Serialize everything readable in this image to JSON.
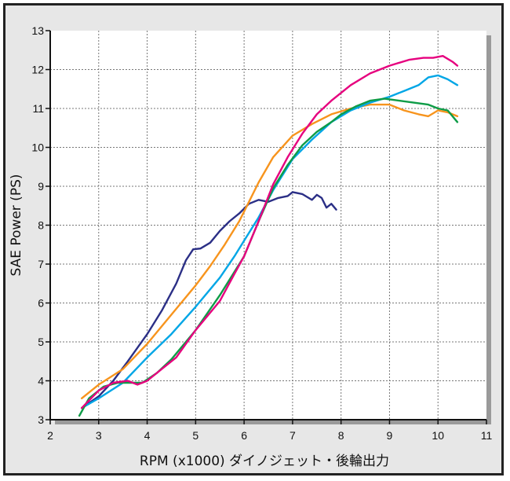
{
  "chart_data": {
    "type": "line",
    "xlabel": "RPM (x1000) ダイノジェット・後輪出力",
    "ylabel": "SAE Power (PS)",
    "xlim": [
      2,
      11
    ],
    "ylim": [
      3,
      13
    ],
    "xticks": [
      "2",
      "3",
      "4",
      "5",
      "6",
      "7",
      "8",
      "9",
      "10",
      "11"
    ],
    "yticks": [
      "3",
      "4",
      "5",
      "6",
      "7",
      "8",
      "9",
      "10",
      "11",
      "12",
      "13"
    ],
    "grid": true,
    "series": [
      {
        "color": "#2b2f86",
        "x": [
          2.65,
          3.0,
          3.3,
          3.6,
          4.0,
          4.3,
          4.6,
          4.8,
          4.95,
          5.1,
          5.3,
          5.5,
          5.7,
          5.9,
          6.1,
          6.3,
          6.5,
          6.7,
          6.9,
          7.0,
          7.2,
          7.4,
          7.5,
          7.6,
          7.7,
          7.8,
          7.9
        ],
        "y": [
          3.3,
          3.6,
          4.0,
          4.5,
          5.2,
          5.8,
          6.5,
          7.1,
          7.38,
          7.4,
          7.55,
          7.85,
          8.1,
          8.3,
          8.55,
          8.65,
          8.6,
          8.7,
          8.75,
          8.85,
          8.8,
          8.65,
          8.78,
          8.7,
          8.45,
          8.55,
          8.4
        ]
      },
      {
        "color": "#f7941d",
        "x": [
          2.65,
          3.0,
          3.5,
          4.0,
          4.5,
          5.0,
          5.3,
          5.6,
          5.9,
          6.1,
          6.3,
          6.6,
          7.0,
          7.4,
          7.8,
          8.2,
          8.6,
          9.0,
          9.3,
          9.6,
          9.8,
          10.0,
          10.2,
          10.4
        ],
        "y": [
          3.55,
          3.9,
          4.3,
          4.95,
          5.7,
          6.45,
          6.95,
          7.5,
          8.1,
          8.6,
          9.1,
          9.75,
          10.3,
          10.6,
          10.85,
          11.0,
          11.1,
          11.1,
          10.95,
          10.85,
          10.8,
          10.95,
          10.9,
          10.8
        ]
      },
      {
        "color": "#00a6e6",
        "x": [
          2.65,
          3.0,
          3.5,
          4.0,
          4.5,
          5.0,
          5.5,
          5.8,
          6.0,
          6.3,
          6.6,
          7.0,
          7.4,
          7.8,
          8.2,
          8.6,
          9.0,
          9.3,
          9.6,
          9.8,
          10.0,
          10.2,
          10.4
        ],
        "y": [
          3.3,
          3.55,
          3.95,
          4.6,
          5.2,
          5.9,
          6.65,
          7.2,
          7.6,
          8.2,
          8.9,
          9.7,
          10.2,
          10.65,
          10.95,
          11.15,
          11.3,
          11.45,
          11.6,
          11.8,
          11.85,
          11.75,
          11.6
        ]
      },
      {
        "color": "#0e9c47",
        "x": [
          2.6,
          2.8,
          3.1,
          3.4,
          3.7,
          3.9,
          4.2,
          4.5,
          5.0,
          5.5,
          5.8,
          6.0,
          6.3,
          6.6,
          6.9,
          7.2,
          7.5,
          7.8,
          8.0,
          8.3,
          8.6,
          8.9,
          9.2,
          9.5,
          9.8,
          10.0,
          10.2,
          10.4
        ],
        "y": [
          3.1,
          3.55,
          3.85,
          3.95,
          3.95,
          3.95,
          4.2,
          4.55,
          5.3,
          6.2,
          6.8,
          7.2,
          8.1,
          8.95,
          9.55,
          10.05,
          10.4,
          10.65,
          10.85,
          11.05,
          11.2,
          11.25,
          11.2,
          11.15,
          11.1,
          11.0,
          10.95,
          10.65
        ]
      },
      {
        "color": "#e6007e",
        "x": [
          2.65,
          3.0,
          3.3,
          3.6,
          3.8,
          4.0,
          4.3,
          4.6,
          5.0,
          5.5,
          5.8,
          6.0,
          6.3,
          6.6,
          6.9,
          7.2,
          7.5,
          7.8,
          8.2,
          8.6,
          9.0,
          9.4,
          9.7,
          9.9,
          10.1,
          10.3,
          10.4
        ],
        "y": [
          3.3,
          3.75,
          3.95,
          4.0,
          3.9,
          4.0,
          4.3,
          4.6,
          5.3,
          6.05,
          6.75,
          7.2,
          8.1,
          9.05,
          9.75,
          10.35,
          10.85,
          11.2,
          11.6,
          11.9,
          12.1,
          12.25,
          12.3,
          12.3,
          12.35,
          12.2,
          12.1
        ]
      }
    ]
  }
}
